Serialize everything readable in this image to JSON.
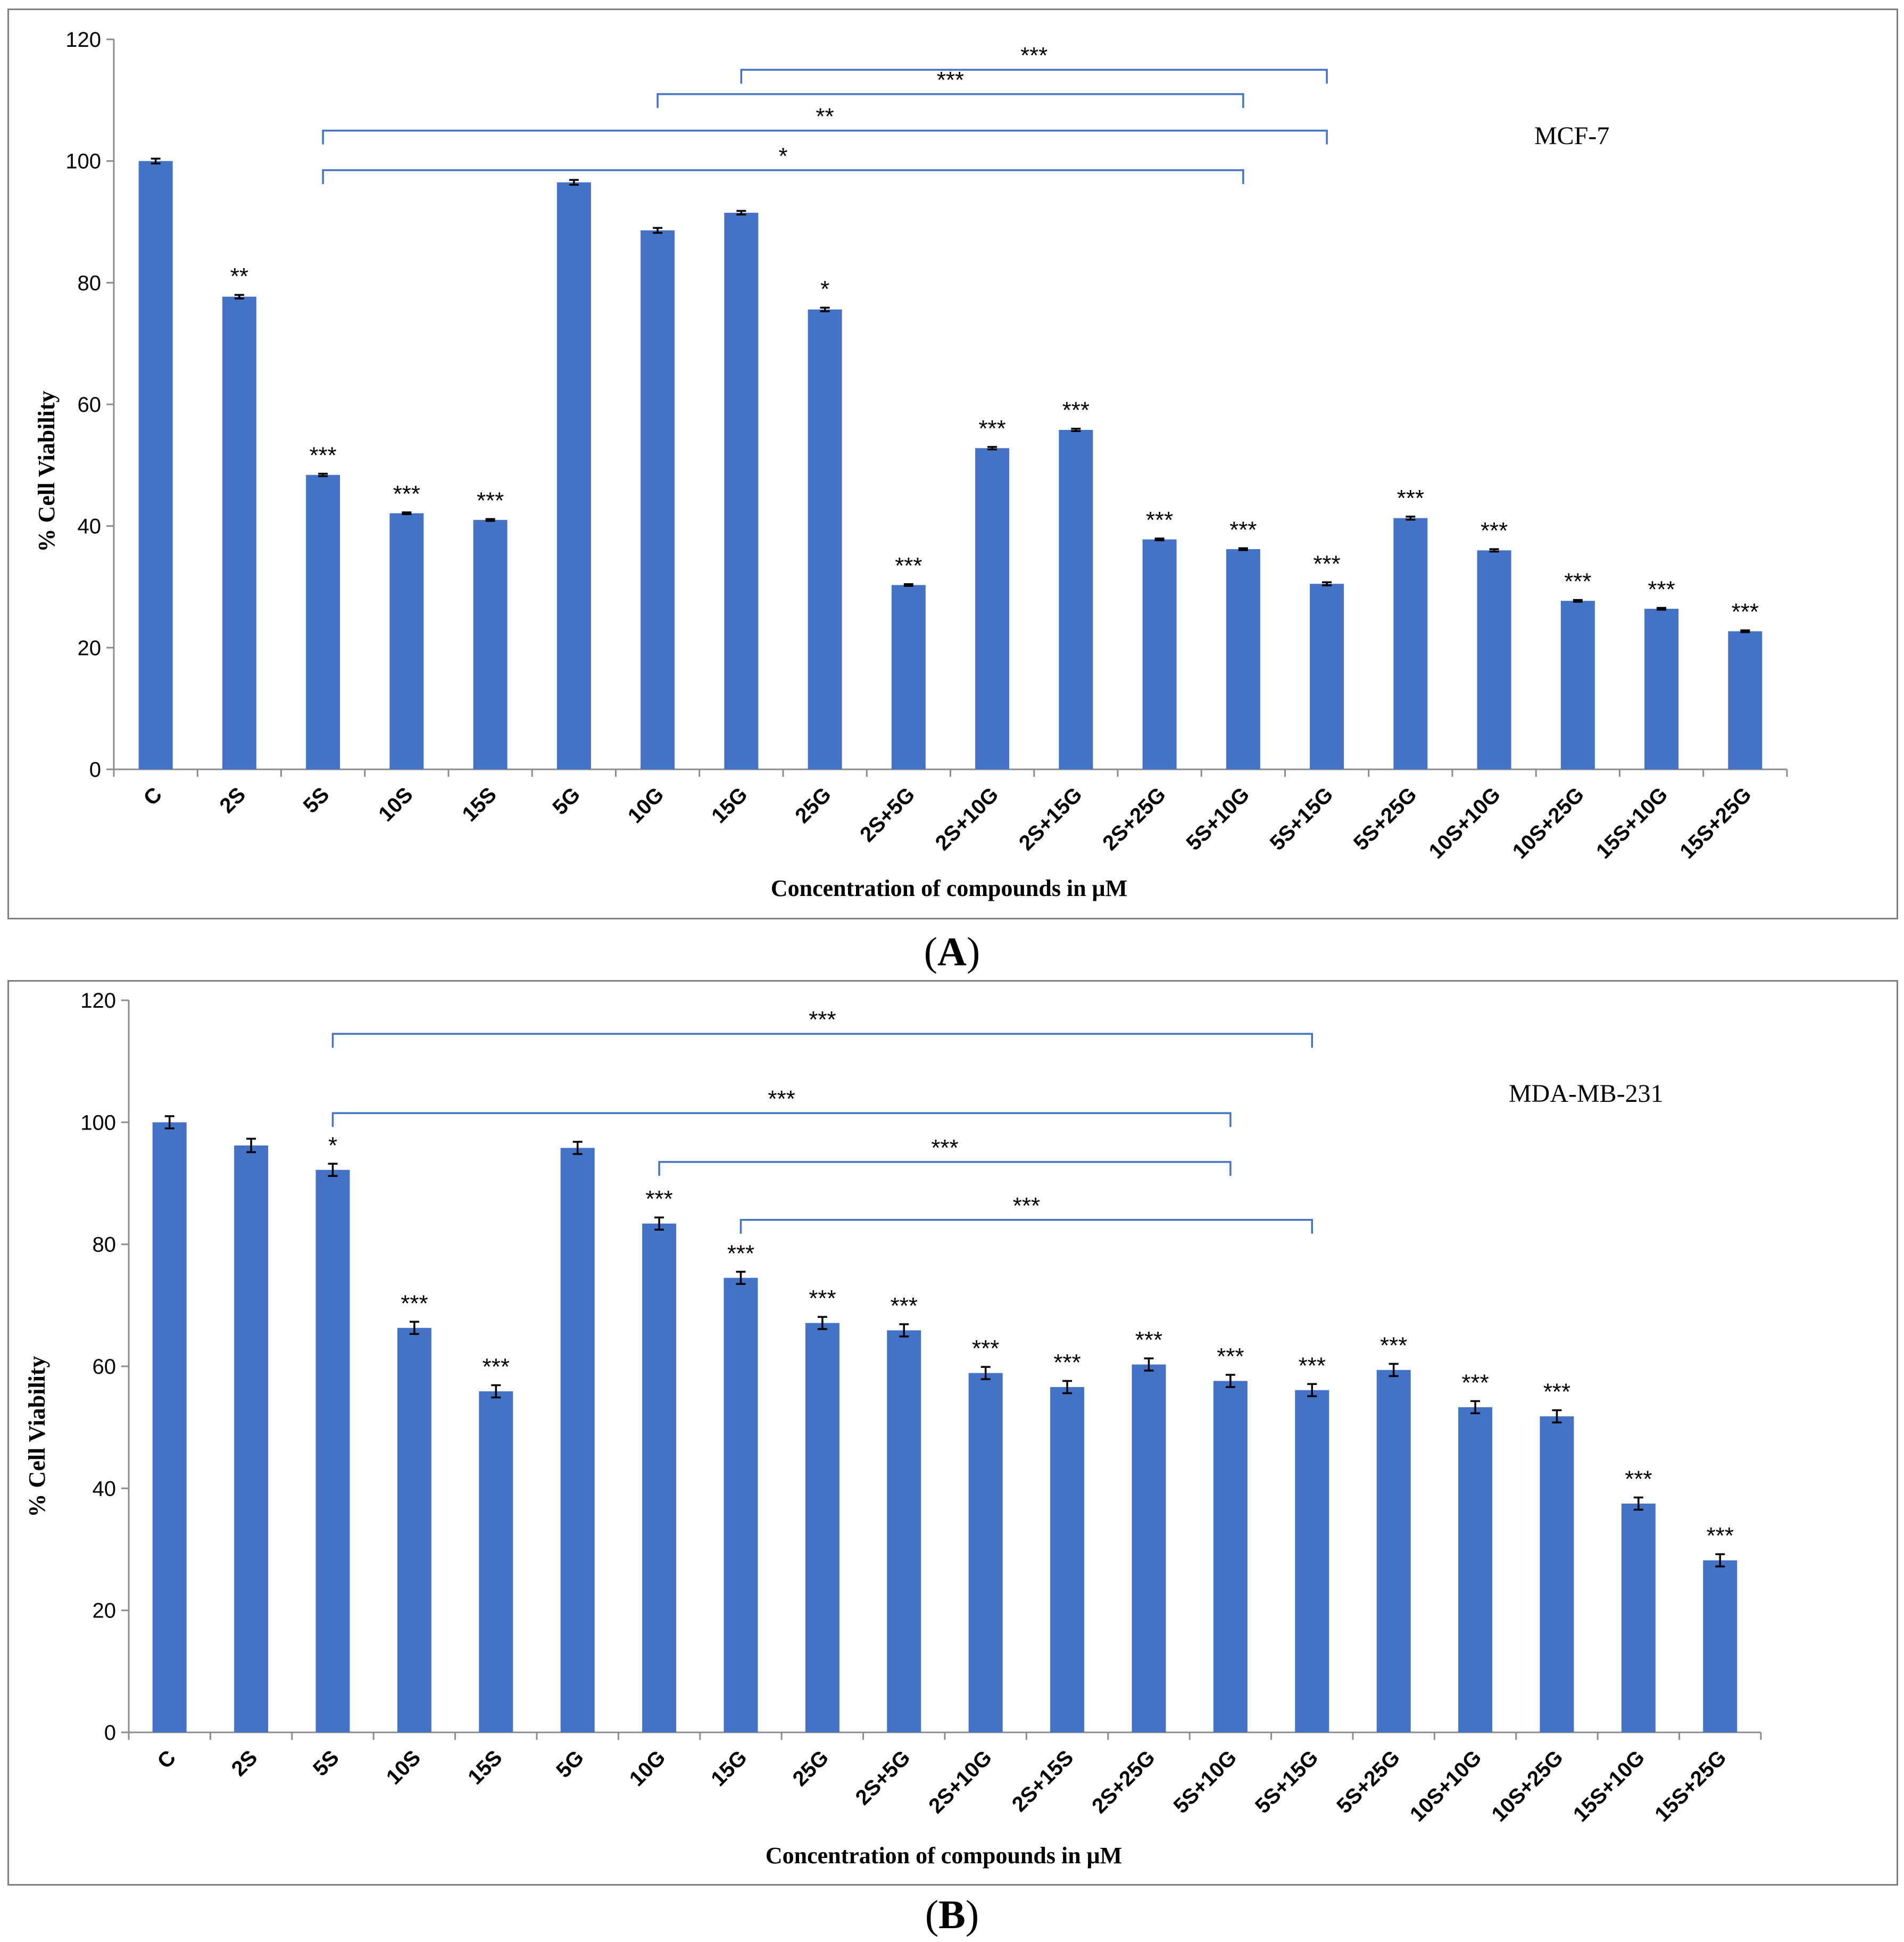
{
  "chart_data": [
    {
      "type": "bar",
      "panel_label": "A",
      "cell_line": "MCF-7",
      "xlabel": "Concentration of compounds  in μM",
      "ylabel": "% Cell Viability",
      "ylim": [
        0,
        120
      ],
      "yticks": [
        0,
        20,
        40,
        60,
        80,
        100,
        120
      ],
      "categories": [
        "C",
        "2S",
        "5S",
        "10S",
        "15S",
        "5G",
        "10G",
        "15G",
        "25G",
        "2S+5G",
        "2S+10G",
        "2S+15G",
        "2S+25G",
        "5S+10G",
        "5S+15G",
        "5S+25G",
        "10S+10G",
        "10S+25G",
        "15S+10G",
        "15S+25G"
      ],
      "values": [
        100,
        77.7,
        48.4,
        42.1,
        41.0,
        96.5,
        88.6,
        91.5,
        75.6,
        30.3,
        52.8,
        55.8,
        37.8,
        36.2,
        30.5,
        41.3,
        36.0,
        27.7,
        26.4,
        22.7
      ],
      "errors": [
        0.4,
        0.3,
        0.2,
        0.15,
        0.15,
        0.4,
        0.4,
        0.3,
        0.3,
        0.15,
        0.2,
        0.2,
        0.15,
        0.15,
        0.25,
        0.25,
        0.2,
        0.15,
        0.15,
        0.15
      ],
      "significance": [
        "",
        "**",
        "***",
        "***",
        "***",
        "",
        "",
        "",
        "*",
        "***",
        "***",
        "***",
        "***",
        "***",
        "***",
        "***",
        "***",
        "***",
        "***",
        "***"
      ],
      "brackets": [
        {
          "from": 7,
          "to": 14,
          "y": 115,
          "label": "***"
        },
        {
          "from": 6,
          "to": 13,
          "y": 111,
          "label": "***"
        },
        {
          "from": 2,
          "to": 14,
          "y": 105,
          "label": "**"
        },
        {
          "from": 2,
          "to": 13,
          "y": 98.5,
          "label": "*"
        }
      ]
    },
    {
      "type": "bar",
      "panel_label": "B",
      "cell_line": "MDA-MB-231",
      "xlabel": "Concentration of compounds  in μM",
      "ylabel": "% Cell Viability",
      "ylim": [
        0,
        120
      ],
      "yticks": [
        0,
        20,
        40,
        60,
        80,
        100,
        120
      ],
      "categories": [
        "C",
        "2S",
        "5S",
        "10S",
        "15S",
        "5G",
        "10G",
        "15G",
        "25G",
        "2S+5G",
        "2S+10G",
        "2S+15S",
        "2S+25G",
        "5S+10G",
        "5S+15G",
        "5S+25G",
        "10S+10G",
        "10S+25G",
        "15S+10G",
        "15S+25G"
      ],
      "values": [
        100,
        96.2,
        92.2,
        66.3,
        55.9,
        95.8,
        83.4,
        74.5,
        67.1,
        65.9,
        58.9,
        56.6,
        60.3,
        57.6,
        56.1,
        59.4,
        53.3,
        51.8,
        37.5,
        28.2
      ],
      "errors": [
        1.0,
        1.1,
        1.0,
        1.0,
        1.0,
        1.0,
        1.0,
        1.0,
        1.0,
        1.0,
        1.0,
        1.0,
        1.0,
        1.0,
        1.0,
        1.0,
        1.0,
        1.0,
        1.0,
        1.0
      ],
      "significance": [
        "",
        "",
        "*",
        "***",
        "***",
        "",
        "***",
        "***",
        "***",
        "***",
        "***",
        "***",
        "***",
        "***",
        "***",
        "***",
        "***",
        "***",
        "***",
        "***"
      ],
      "brackets": [
        {
          "from": 2,
          "to": 14,
          "y": 114.5,
          "label": "***"
        },
        {
          "from": 2,
          "to": 13,
          "y": 101.5,
          "label": "***"
        },
        {
          "from": 6,
          "to": 13,
          "y": 93.5,
          "label": "***"
        },
        {
          "from": 7,
          "to": 14,
          "y": 84,
          "label": "***"
        }
      ]
    }
  ]
}
